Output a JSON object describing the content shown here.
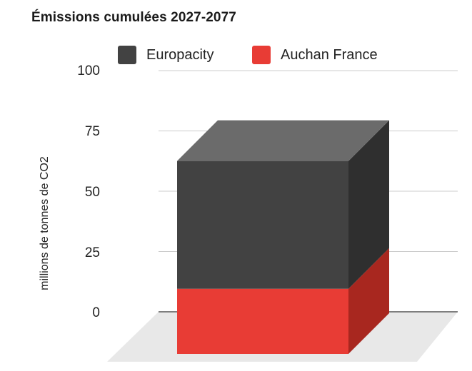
{
  "chart_data": {
    "type": "bar",
    "style": "3d-stacked",
    "title": "Émissions cumulées 2027-2077",
    "xlabel": "",
    "ylabel": "millions de tonnes de CO2",
    "ylim": [
      0,
      100
    ],
    "yticks": [
      "100",
      "75",
      "50",
      "25",
      "0"
    ],
    "categories": [
      ""
    ],
    "series": [
      {
        "name": "Europacity",
        "values": [
          53
        ],
        "color": "#424242",
        "top_color": "#6b6b6b",
        "side_color": "#2f2f2f"
      },
      {
        "name": "Auchan France",
        "values": [
          27
        ],
        "color": "#e83c35",
        "top_color": "#f05a52",
        "side_color": "#a8271f"
      }
    ],
    "legend": "top",
    "grid": true
  }
}
